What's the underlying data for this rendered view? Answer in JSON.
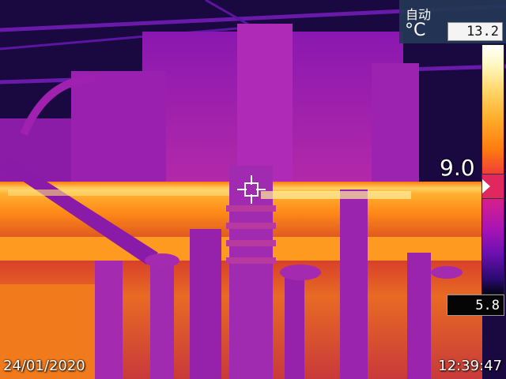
{
  "palette": {
    "sky": "#1a0840",
    "structure": "#a622b8",
    "hot": "#ff8a18",
    "hottest": "#fff3a8",
    "panel": "#233755"
  },
  "camera": {
    "mode_label": "自动",
    "unit": "°C",
    "max_temp": "13.2",
    "min_temp": "5.8",
    "spot_temp": "9.0",
    "date": "24/01/2020",
    "time": "12:39:47"
  },
  "icons": {
    "crosshair": "crosshair-icon",
    "scale_marker": "triangle-right-icon"
  }
}
